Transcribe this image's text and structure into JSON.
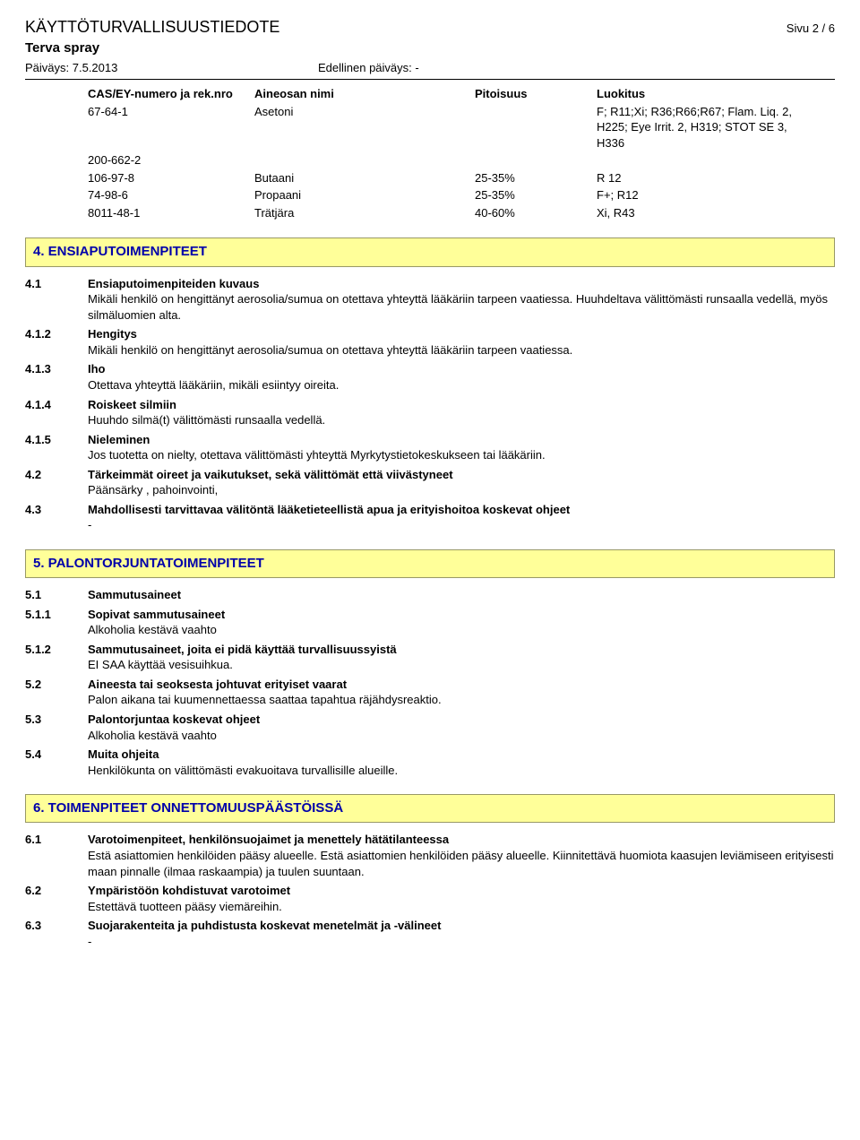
{
  "header": {
    "main_title": "KÄYTTÖTURVALLISUUSTIEDOTE",
    "page_info": "Sivu 2 / 6",
    "sub_title": "Terva spray",
    "date_label": "Päiväys: 7.5.2013",
    "prev_date_label": "Edellinen päiväys: -"
  },
  "ingredients": {
    "headers": {
      "cas": "CAS/EY-numero ja rek.nro",
      "name": "Aineosan nimi",
      "conc": "Pitoisuus",
      "class": "Luokitus"
    },
    "rows": [
      {
        "cas": "67-64-1",
        "name": "Asetoni",
        "conc": "",
        "class": "F; R11;Xi; R36;R66;R67; Flam. Liq. 2, H225; Eye Irrit. 2, H319; STOT SE 3, H336"
      },
      {
        "cas": "200-662-2",
        "name": "",
        "conc": "",
        "class": ""
      },
      {
        "cas": "106-97-8",
        "name": "Butaani",
        "conc": "25-35%",
        "class": "R 12"
      },
      {
        "cas": "74-98-6",
        "name": "Propaani",
        "conc": "25-35%",
        "class": "F+; R12"
      },
      {
        "cas": "8011-48-1",
        "name": "Trätjära",
        "conc": "40-60%",
        "class": "Xi, R43"
      }
    ]
  },
  "section4": {
    "title": "4. ENSIAPUTOIMENPITEET",
    "items": [
      {
        "num": "4.1",
        "label": "Ensiaputoimenpiteiden kuvaus",
        "body": "Mikäli henkilö on hengittänyt aerosolia/sumua on otettava yhteyttä lääkäriin tarpeen vaatiessa. Huuhdeltava välittömästi runsaalla vedellä, myös silmäluomien alta."
      },
      {
        "num": "4.1.2",
        "label": "Hengitys",
        "body": "Mikäli henkilö on hengittänyt aerosolia/sumua on otettava yhteyttä lääkäriin tarpeen vaatiessa."
      },
      {
        "num": "4.1.3",
        "label": "Iho",
        "body": "Otettava yhteyttä lääkäriin, mikäli esiintyy oireita."
      },
      {
        "num": "4.1.4",
        "label": "Roiskeet silmiin",
        "body": "Huuhdo silmä(t) välittömästi runsaalla vedellä."
      },
      {
        "num": "4.1.5",
        "label": "Nieleminen",
        "body": "Jos tuotetta on nielty, otettava välittömästi yhteyttä Myrkytystietokeskukseen tai lääkäriin."
      },
      {
        "num": "4.2",
        "label": "Tärkeimmät oireet ja vaikutukset, sekä välittömät että viivästyneet",
        "body": "Päänsärky , pahoinvointi,"
      },
      {
        "num": "4.3",
        "label": "Mahdollisesti tarvittavaa välitöntä lääketieteellistä apua ja erityishoitoa koskevat ohjeet",
        "body": "-"
      }
    ]
  },
  "section5": {
    "title": "5. PALONTORJUNTATOIMENPITEET",
    "items": [
      {
        "num": "5.1",
        "label": "Sammutusaineet",
        "body": ""
      },
      {
        "num": "5.1.1",
        "label": "Sopivat sammutusaineet",
        "body": "Alkoholia kestävä vaahto"
      },
      {
        "num": "5.1.2",
        "label": "Sammutusaineet, joita ei pidä käyttää turvallisuussyistä",
        "body": "EI SAA käyttää vesisuihkua."
      },
      {
        "num": "5.2",
        "label": "Aineesta tai seoksesta johtuvat erityiset vaarat",
        "body": "Palon aikana tai kuumennettaessa saattaa tapahtua räjähdysreaktio."
      },
      {
        "num": "5.3",
        "label": "Palontorjuntaa koskevat ohjeet",
        "body": "Alkoholia kestävä vaahto"
      },
      {
        "num": "5.4",
        "label": "Muita ohjeita",
        "body": "Henkilökunta on välittömästi evakuoitava turvallisille alueille."
      }
    ]
  },
  "section6": {
    "title": "6. TOIMENPITEET ONNETTOMUUSPÄÄSTÖISSÄ",
    "items": [
      {
        "num": "6.1",
        "label": "Varotoimenpiteet, henkilönsuojaimet ja menettely hätätilanteessa",
        "body": "Estä asiattomien henkilöiden pääsy alueelle. Estä asiattomien henkilöiden pääsy alueelle. Kiinnitettävä huomiota kaasujen leviämiseen erityisesti maan pinnalle (ilmaa raskaampia) ja tuulen suuntaan."
      },
      {
        "num": "6.2",
        "label": "Ympäristöön kohdistuvat varotoimet",
        "body": "Estettävä tuotteen pääsy viemäreihin."
      },
      {
        "num": "6.3",
        "label": "Suojarakenteita ja puhdistusta koskevat menetelmät ja -välineet",
        "body": "-"
      }
    ]
  }
}
